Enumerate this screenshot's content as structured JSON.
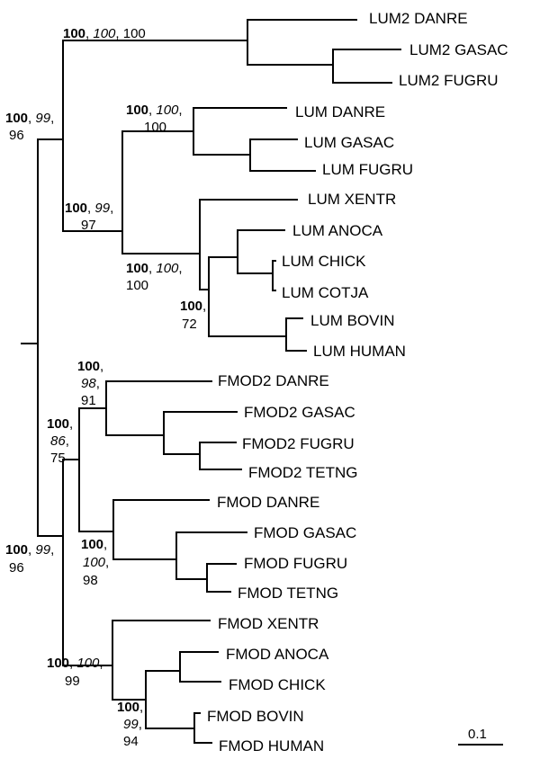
{
  "taxa": [
    "LUM2 DANRE",
    "LUM2 GASAC",
    "LUM2 FUGRU",
    "LUM DANRE",
    "LUM GASAC",
    "LUM FUGRU",
    "LUM XENTR",
    "LUM ANOCA",
    "LUM CHICK",
    "LUM COTJA",
    "LUM BOVIN",
    "LUM HUMAN",
    "FMOD2 DANRE",
    "FMOD2 GASAC",
    "FMOD2 FUGRU",
    "FMOD2 TETNG",
    "FMOD DANRE",
    "FMOD GASAC",
    "FMOD FUGRU",
    "FMOD TETNG",
    "FMOD XENTR",
    "FMOD ANOCA",
    "FMOD CHICK",
    "FMOD BOVIN",
    "FMOD HUMAN"
  ],
  "support_values": [
    {
      "b": "100",
      "i": "100",
      "n": "100"
    },
    {
      "b": "100",
      "i": "99",
      "n": "96"
    },
    {
      "b": "100",
      "i": "100",
      "n": "100"
    },
    {
      "b": "100",
      "i": "99",
      "n": "97"
    },
    {
      "b": "100",
      "i": "100",
      "n": "100"
    },
    {
      "b": "100",
      "n": "72"
    },
    {
      "b": "100",
      "i": "98",
      "n": "91"
    },
    {
      "b": "100",
      "i": "86",
      "n": "75"
    },
    {
      "b": "100",
      "i": "99",
      "n": "96"
    },
    {
      "b": "100",
      "i": "100",
      "n": "98"
    },
    {
      "b": "100",
      "i": "100",
      "n": "99"
    },
    {
      "b": "100",
      "i": "99",
      "n": "94"
    }
  ],
  "scale_bar": {
    "label": "0.1"
  }
}
